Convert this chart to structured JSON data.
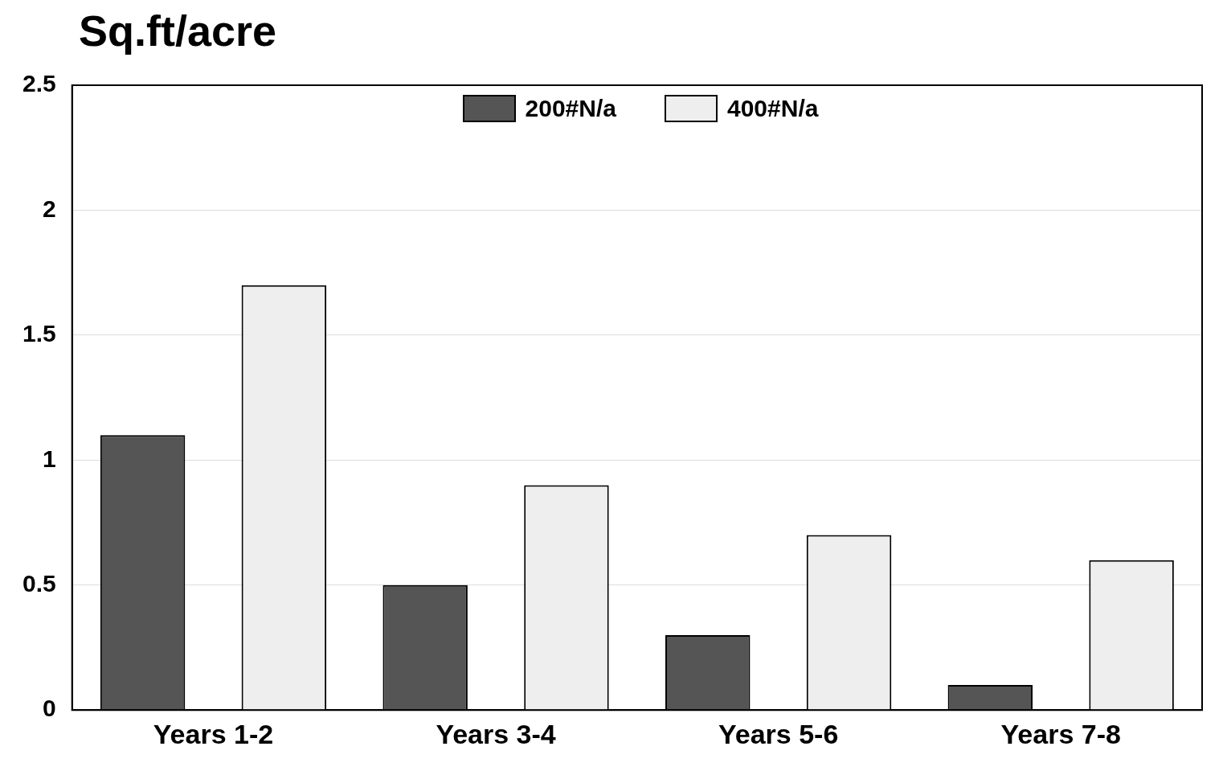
{
  "chart_data": {
    "type": "bar",
    "ylabel": "Sq.ft/acre",
    "categories": [
      "Years 1-2",
      "Years 3-4",
      "Years 5-6",
      "Years 7-8"
    ],
    "series": [
      {
        "name": "200#N/a",
        "color": "#555555",
        "values": [
          1.1,
          0.5,
          0.3,
          0.1
        ]
      },
      {
        "name": "400#N/a",
        "color": "#eeeeee",
        "values": [
          1.7,
          0.9,
          0.7,
          0.6
        ]
      }
    ],
    "ylim": [
      0,
      2.5
    ],
    "yticks": [
      0,
      0.5,
      1,
      1.5,
      2,
      2.5
    ],
    "grid": "y",
    "legend": "top"
  }
}
